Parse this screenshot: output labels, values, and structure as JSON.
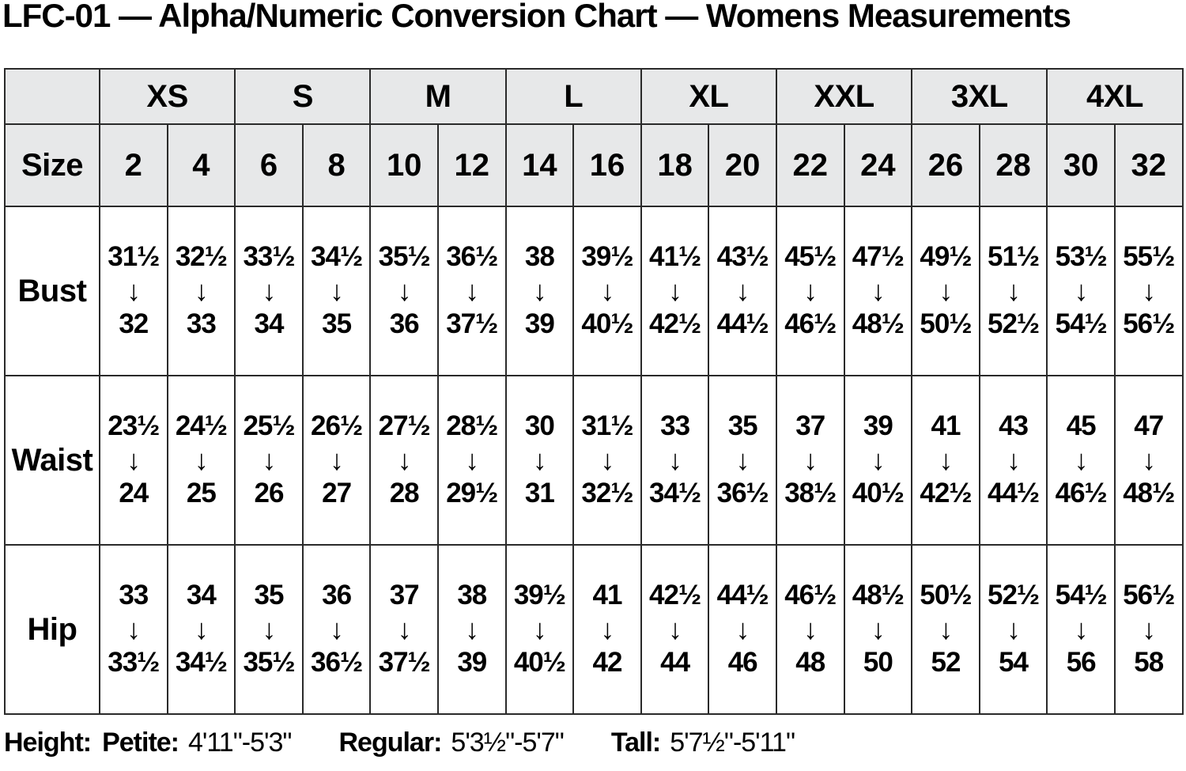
{
  "title": "LFC-01 — Alpha/Numeric Conversion Chart — Womens Measurements",
  "chart_data": {
    "type": "table",
    "title": "LFC-01 — Alpha/Numeric Conversion Chart — Womens Measurements",
    "row_header_label": "Size",
    "alpha_sizes": [
      "XS",
      "S",
      "M",
      "L",
      "XL",
      "XXL",
      "3XL",
      "4XL"
    ],
    "numeric_sizes": [
      "2",
      "4",
      "6",
      "8",
      "10",
      "12",
      "14",
      "16",
      "18",
      "20",
      "22",
      "24",
      "26",
      "28",
      "30",
      "32"
    ],
    "measurement_rows": [
      {
        "label": "Bust",
        "ranges": [
          {
            "from": "31½",
            "to": "32"
          },
          {
            "from": "32½",
            "to": "33"
          },
          {
            "from": "33½",
            "to": "34"
          },
          {
            "from": "34½",
            "to": "35"
          },
          {
            "from": "35½",
            "to": "36"
          },
          {
            "from": "36½",
            "to": "37½"
          },
          {
            "from": "38",
            "to": "39"
          },
          {
            "from": "39½",
            "to": "40½"
          },
          {
            "from": "41½",
            "to": "42½"
          },
          {
            "from": "43½",
            "to": "44½"
          },
          {
            "from": "45½",
            "to": "46½"
          },
          {
            "from": "47½",
            "to": "48½"
          },
          {
            "from": "49½",
            "to": "50½"
          },
          {
            "from": "51½",
            "to": "52½"
          },
          {
            "from": "53½",
            "to": "54½"
          },
          {
            "from": "55½",
            "to": "56½"
          }
        ]
      },
      {
        "label": "Waist",
        "ranges": [
          {
            "from": "23½",
            "to": "24"
          },
          {
            "from": "24½",
            "to": "25"
          },
          {
            "from": "25½",
            "to": "26"
          },
          {
            "from": "26½",
            "to": "27"
          },
          {
            "from": "27½",
            "to": "28"
          },
          {
            "from": "28½",
            "to": "29½"
          },
          {
            "from": "30",
            "to": "31"
          },
          {
            "from": "31½",
            "to": "32½"
          },
          {
            "from": "33",
            "to": "34½"
          },
          {
            "from": "35",
            "to": "36½"
          },
          {
            "from": "37",
            "to": "38½"
          },
          {
            "from": "39",
            "to": "40½"
          },
          {
            "from": "41",
            "to": "42½"
          },
          {
            "from": "43",
            "to": "44½"
          },
          {
            "from": "45",
            "to": "46½"
          },
          {
            "from": "47",
            "to": "48½"
          }
        ]
      },
      {
        "label": "Hip",
        "ranges": [
          {
            "from": "33",
            "to": "33½"
          },
          {
            "from": "34",
            "to": "34½"
          },
          {
            "from": "35",
            "to": "35½"
          },
          {
            "from": "36",
            "to": "36½"
          },
          {
            "from": "37",
            "to": "37½"
          },
          {
            "from": "38",
            "to": "39"
          },
          {
            "from": "39½",
            "to": "40½"
          },
          {
            "from": "41",
            "to": "42"
          },
          {
            "from": "42½",
            "to": "44"
          },
          {
            "from": "44½",
            "to": "46"
          },
          {
            "from": "46½",
            "to": "48"
          },
          {
            "from": "48½",
            "to": "50"
          },
          {
            "from": "50½",
            "to": "52"
          },
          {
            "from": "52½",
            "to": "54"
          },
          {
            "from": "54½",
            "to": "56"
          },
          {
            "from": "56½",
            "to": "58"
          }
        ]
      }
    ]
  },
  "icons": {
    "range_arrow": "↓"
  },
  "footer": {
    "height_label": "Height:",
    "ranges": [
      {
        "label": "Petite:",
        "value": "4'11\"-5'3\""
      },
      {
        "label": "Regular:",
        "value": "5'3½\"-5'7\""
      },
      {
        "label": "Tall:",
        "value": "5'7½\"-5'11\""
      }
    ]
  },
  "colors": {
    "header_fill": "#e7e8e9",
    "border": "#2a2a2a",
    "text": "#000000",
    "page_bg": "#ffffff"
  }
}
